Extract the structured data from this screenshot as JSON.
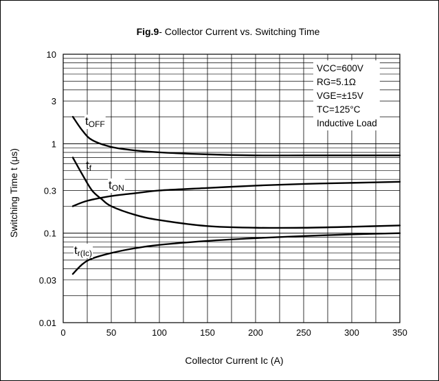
{
  "chart_data": {
    "type": "line",
    "title_bold": "Fig.9",
    "title_rest": "- Collector Current vs. Switching Time",
    "xlabel": "Collector Current Ic  (A)",
    "ylabel": "Switching Time t  (μs)",
    "x_scale": "linear",
    "y_scale": "log",
    "xlim": [
      0,
      350
    ],
    "ylim": [
      0.01,
      10
    ],
    "grid": true,
    "x_ticks": [
      0,
      50,
      100,
      150,
      200,
      250,
      300,
      350
    ],
    "x_tick_labels": [
      "0",
      "50",
      "100",
      "150",
      "200",
      "250",
      "300",
      "350"
    ],
    "y_ticks": [
      0.01,
      0.03,
      0.1,
      0.3,
      1,
      3,
      10
    ],
    "y_tick_labels": [
      "0.01",
      "0.03",
      "0.1",
      "0.3",
      "1",
      "3",
      "10"
    ],
    "conditions": [
      "VCC=600V",
      "RG=5.1Ω",
      "VGE=±15V",
      "TC=125°C",
      "Inductive Load"
    ],
    "series": [
      {
        "name": "tOFF",
        "x": [
          10,
          20,
          30,
          50,
          75,
          100,
          150,
          200,
          250,
          300,
          350
        ],
        "y": [
          2.0,
          1.4,
          1.1,
          0.92,
          0.84,
          0.8,
          0.76,
          0.74,
          0.74,
          0.74,
          0.74
        ]
      },
      {
        "name": "tf",
        "x": [
          10,
          20,
          30,
          40,
          50,
          75,
          100,
          150,
          200,
          250,
          300,
          350
        ],
        "y": [
          0.7,
          0.45,
          0.3,
          0.24,
          0.2,
          0.16,
          0.14,
          0.12,
          0.115,
          0.115,
          0.118,
          0.122
        ]
      },
      {
        "name": "tON",
        "x": [
          10,
          25,
          50,
          75,
          100,
          150,
          200,
          250,
          300,
          350
        ],
        "y": [
          0.2,
          0.23,
          0.26,
          0.28,
          0.3,
          0.32,
          0.34,
          0.355,
          0.365,
          0.375
        ]
      },
      {
        "name": "tr(Ic)",
        "x": [
          10,
          20,
          30,
          50,
          75,
          100,
          150,
          200,
          250,
          300,
          350
        ],
        "y": [
          0.035,
          0.045,
          0.052,
          0.06,
          0.068,
          0.074,
          0.082,
          0.088,
          0.093,
          0.097,
          0.1
        ]
      }
    ],
    "series_labels": [
      {
        "base": "t",
        "sub": "OFF"
      },
      {
        "base": "t",
        "sub": "f"
      },
      {
        "base": "t",
        "sub": "ON"
      },
      {
        "base": "t",
        "sub": "r(Ic)"
      }
    ]
  }
}
